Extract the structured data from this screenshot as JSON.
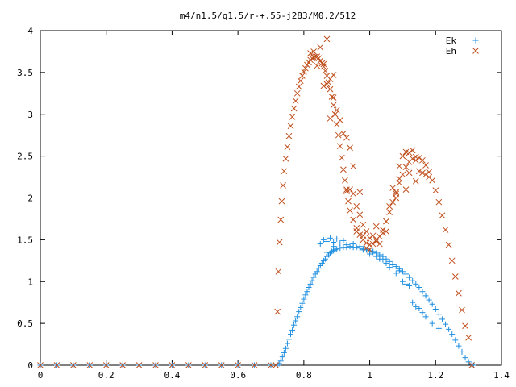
{
  "chart_data": {
    "type": "scatter",
    "title": "m4/n1.5/q1.5/r-+.55-j283/M0.2/512",
    "xlabel": "",
    "ylabel": "",
    "xlim": [
      0,
      1.4
    ],
    "ylim": [
      0,
      4
    ],
    "x_ticks": [
      "0",
      "0.2",
      "0.4",
      "0.6",
      "0.8",
      "1",
      "1.2",
      "1.4"
    ],
    "y_ticks": [
      "0",
      "0.5",
      "1",
      "1.5",
      "2",
      "2.5",
      "3",
      "3.5",
      "4"
    ],
    "legend_position": "top-right",
    "grid": false,
    "series": [
      {
        "name": "Ek",
        "marker": "plus",
        "color": "#1f8fe0",
        "points": [
          [
            0.0,
            0
          ],
          [
            0.05,
            0
          ],
          [
            0.1,
            0
          ],
          [
            0.15,
            0
          ],
          [
            0.2,
            0
          ],
          [
            0.25,
            0
          ],
          [
            0.3,
            0
          ],
          [
            0.35,
            0
          ],
          [
            0.4,
            0
          ],
          [
            0.45,
            0
          ],
          [
            0.5,
            0
          ],
          [
            0.55,
            0
          ],
          [
            0.6,
            0
          ],
          [
            0.65,
            0
          ],
          [
            0.7,
            0
          ],
          [
            0.72,
            0
          ],
          [
            0.725,
            0.02
          ],
          [
            0.73,
            0.05
          ],
          [
            0.735,
            0.1
          ],
          [
            0.74,
            0.15
          ],
          [
            0.745,
            0.2
          ],
          [
            0.75,
            0.26
          ],
          [
            0.755,
            0.31
          ],
          [
            0.76,
            0.37
          ],
          [
            0.765,
            0.42
          ],
          [
            0.77,
            0.48
          ],
          [
            0.775,
            0.53
          ],
          [
            0.78,
            0.58
          ],
          [
            0.785,
            0.64
          ],
          [
            0.79,
            0.69
          ],
          [
            0.795,
            0.74
          ],
          [
            0.8,
            0.79
          ],
          [
            0.805,
            0.84
          ],
          [
            0.81,
            0.88
          ],
          [
            0.815,
            0.93
          ],
          [
            0.82,
            0.97
          ],
          [
            0.825,
            1.01
          ],
          [
            0.83,
            1.05
          ],
          [
            0.835,
            1.09
          ],
          [
            0.84,
            1.12
          ],
          [
            0.845,
            1.16
          ],
          [
            0.85,
            1.19
          ],
          [
            0.855,
            1.22
          ],
          [
            0.86,
            1.25
          ],
          [
            0.865,
            1.27
          ],
          [
            0.87,
            1.3
          ],
          [
            0.875,
            1.32
          ],
          [
            0.88,
            1.34
          ],
          [
            0.885,
            1.36
          ],
          [
            0.89,
            1.37
          ],
          [
            0.895,
            1.38
          ],
          [
            0.9,
            1.39
          ],
          [
            0.91,
            1.4
          ],
          [
            0.92,
            1.41
          ],
          [
            0.93,
            1.41
          ],
          [
            0.94,
            1.42
          ],
          [
            0.95,
            1.41
          ],
          [
            0.96,
            1.41
          ],
          [
            0.97,
            1.4
          ],
          [
            0.98,
            1.39
          ],
          [
            0.99,
            1.38
          ],
          [
            1.0,
            1.37
          ],
          [
            1.01,
            1.36
          ],
          [
            1.02,
            1.34
          ],
          [
            1.03,
            1.32
          ],
          [
            1.04,
            1.3
          ],
          [
            1.05,
            1.27
          ],
          [
            1.06,
            1.24
          ],
          [
            1.07,
            1.21
          ],
          [
            1.08,
            1.18
          ],
          [
            1.09,
            1.15
          ],
          [
            1.1,
            1.12
          ],
          [
            1.11,
            1.09
          ],
          [
            1.12,
            1.05
          ],
          [
            1.13,
            1.01
          ],
          [
            1.14,
            0.97
          ],
          [
            1.15,
            0.93
          ],
          [
            1.16,
            0.88
          ],
          [
            1.17,
            0.83
          ],
          [
            1.18,
            0.78
          ],
          [
            1.19,
            0.73
          ],
          [
            1.2,
            0.67
          ],
          [
            1.21,
            0.61
          ],
          [
            1.22,
            0.55
          ],
          [
            1.23,
            0.49
          ],
          [
            1.24,
            0.43
          ],
          [
            1.25,
            0.37
          ],
          [
            1.26,
            0.3
          ],
          [
            1.27,
            0.23
          ],
          [
            1.28,
            0.16
          ],
          [
            1.29,
            0.09
          ],
          [
            1.3,
            0.04
          ],
          [
            1.31,
            0.01
          ],
          [
            1.315,
            0.0
          ],
          [
            0.85,
            1.45
          ],
          [
            0.86,
            1.5
          ],
          [
            0.87,
            1.48
          ],
          [
            0.88,
            1.52
          ],
          [
            0.89,
            1.47
          ],
          [
            0.9,
            1.51
          ],
          [
            0.91,
            1.46
          ],
          [
            0.92,
            1.49
          ],
          [
            0.95,
            1.45
          ],
          [
            0.98,
            1.38
          ],
          [
            1.0,
            1.33
          ],
          [
            1.02,
            1.3
          ],
          [
            1.03,
            1.27
          ],
          [
            1.05,
            1.22
          ],
          [
            1.06,
            1.17
          ],
          [
            1.08,
            1.1
          ],
          [
            1.1,
            1.0
          ],
          [
            1.12,
            0.95
          ],
          [
            1.13,
            0.75
          ],
          [
            1.14,
            0.7
          ],
          [
            1.15,
            0.68
          ],
          [
            1.16,
            0.63
          ],
          [
            1.04,
            1.26
          ],
          [
            1.07,
            1.2
          ],
          [
            1.09,
            1.13
          ],
          [
            0.87,
            1.35
          ],
          [
            0.89,
            1.42
          ],
          [
            0.93,
            1.44
          ],
          [
            0.97,
            1.42
          ],
          [
            1.01,
            1.35
          ],
          [
            1.11,
            0.97
          ],
          [
            1.17,
            0.58
          ],
          [
            1.19,
            0.5
          ],
          [
            1.21,
            0.44
          ]
        ]
      },
      {
        "name": "Eh",
        "marker": "cross",
        "color": "#c0501e",
        "points": [
          [
            0.0,
            0
          ],
          [
            0.05,
            0
          ],
          [
            0.1,
            0
          ],
          [
            0.15,
            0
          ],
          [
            0.2,
            0
          ],
          [
            0.25,
            0
          ],
          [
            0.3,
            0
          ],
          [
            0.35,
            0
          ],
          [
            0.4,
            0
          ],
          [
            0.45,
            0
          ],
          [
            0.5,
            0
          ],
          [
            0.55,
            0
          ],
          [
            0.6,
            0
          ],
          [
            0.65,
            0
          ],
          [
            0.7,
            0
          ],
          [
            0.715,
            0
          ],
          [
            0.72,
            0.64
          ],
          [
            0.723,
            1.12
          ],
          [
            0.726,
            1.47
          ],
          [
            0.73,
            1.74
          ],
          [
            0.733,
            1.96
          ],
          [
            0.737,
            2.15
          ],
          [
            0.74,
            2.32
          ],
          [
            0.745,
            2.47
          ],
          [
            0.75,
            2.61
          ],
          [
            0.755,
            2.74
          ],
          [
            0.76,
            2.86
          ],
          [
            0.765,
            2.97
          ],
          [
            0.77,
            3.07
          ],
          [
            0.775,
            3.16
          ],
          [
            0.78,
            3.25
          ],
          [
            0.785,
            3.33
          ],
          [
            0.79,
            3.4
          ],
          [
            0.795,
            3.46
          ],
          [
            0.8,
            3.51
          ],
          [
            0.805,
            3.55
          ],
          [
            0.81,
            3.59
          ],
          [
            0.815,
            3.62
          ],
          [
            0.82,
            3.65
          ],
          [
            0.825,
            3.67
          ],
          [
            0.83,
            3.68
          ],
          [
            0.835,
            3.69
          ],
          [
            0.84,
            3.69
          ],
          [
            0.845,
            3.67
          ],
          [
            0.85,
            3.64
          ],
          [
            0.855,
            3.61
          ],
          [
            0.86,
            3.57
          ],
          [
            0.865,
            3.52
          ],
          [
            0.87,
            3.46
          ],
          [
            0.875,
            3.38
          ],
          [
            0.88,
            3.3
          ],
          [
            0.885,
            3.21
          ],
          [
            0.89,
            3.11
          ],
          [
            0.895,
            3.0
          ],
          [
            0.9,
            2.88
          ],
          [
            0.905,
            2.75
          ],
          [
            0.91,
            2.62
          ],
          [
            0.915,
            2.48
          ],
          [
            0.92,
            2.34
          ],
          [
            0.925,
            2.21
          ],
          [
            0.93,
            2.08
          ],
          [
            0.935,
            1.96
          ],
          [
            0.94,
            1.85
          ],
          [
            0.95,
            1.74
          ],
          [
            0.96,
            1.64
          ],
          [
            0.97,
            1.56
          ],
          [
            0.98,
            1.5
          ],
          [
            0.99,
            1.46
          ],
          [
            1.0,
            1.44
          ],
          [
            1.01,
            1.45
          ],
          [
            1.02,
            1.48
          ],
          [
            1.03,
            1.54
          ],
          [
            1.04,
            1.62
          ],
          [
            1.05,
            1.72
          ],
          [
            1.06,
            1.83
          ],
          [
            1.07,
            1.95
          ],
          [
            1.08,
            2.07
          ],
          [
            1.09,
            2.18
          ],
          [
            1.1,
            2.28
          ],
          [
            1.11,
            2.37
          ],
          [
            1.12,
            2.43
          ],
          [
            1.13,
            2.47
          ],
          [
            1.14,
            2.49
          ],
          [
            1.15,
            2.48
          ],
          [
            1.16,
            2.45
          ],
          [
            1.17,
            2.39
          ],
          [
            1.18,
            2.31
          ],
          [
            1.19,
            2.21
          ],
          [
            1.2,
            2.09
          ],
          [
            1.21,
            1.95
          ],
          [
            1.22,
            1.79
          ],
          [
            1.23,
            1.62
          ],
          [
            1.24,
            1.44
          ],
          [
            1.25,
            1.25
          ],
          [
            1.26,
            1.06
          ],
          [
            1.27,
            0.86
          ],
          [
            1.28,
            0.66
          ],
          [
            1.29,
            0.47
          ],
          [
            1.3,
            0.33
          ],
          [
            1.31,
            0.0
          ],
          [
            0.85,
            3.8
          ],
          [
            0.87,
            3.9
          ],
          [
            0.86,
            3.6
          ],
          [
            0.84,
            3.58
          ],
          [
            0.83,
            3.75
          ],
          [
            0.82,
            3.73
          ],
          [
            0.88,
            3.42
          ],
          [
            0.89,
            3.47
          ],
          [
            0.87,
            3.36
          ],
          [
            0.88,
            2.95
          ],
          [
            0.9,
            3.05
          ],
          [
            0.91,
            2.93
          ],
          [
            0.89,
            3.2
          ],
          [
            0.86,
            3.34
          ],
          [
            0.92,
            2.77
          ],
          [
            0.93,
            2.72
          ],
          [
            0.94,
            2.6
          ],
          [
            0.95,
            2.38
          ],
          [
            0.95,
            2.05
          ],
          [
            0.96,
            1.9
          ],
          [
            0.97,
            1.8
          ],
          [
            0.98,
            1.68
          ],
          [
            0.99,
            1.6
          ],
          [
            1.0,
            1.52
          ],
          [
            1.01,
            1.55
          ],
          [
            1.02,
            1.66
          ],
          [
            1.03,
            1.45
          ],
          [
            1.04,
            1.58
          ],
          [
            1.05,
            1.6
          ],
          [
            1.06,
            1.9
          ],
          [
            1.07,
            2.12
          ],
          [
            1.08,
            2.05
          ],
          [
            1.09,
            2.23
          ],
          [
            1.1,
            2.5
          ],
          [
            1.11,
            2.55
          ],
          [
            1.12,
            2.54
          ],
          [
            1.13,
            2.57
          ],
          [
            1.14,
            2.45
          ],
          [
            1.15,
            2.32
          ],
          [
            1.16,
            2.3
          ],
          [
            1.17,
            2.28
          ],
          [
            1.18,
            2.25
          ],
          [
            1.11,
            2.1
          ],
          [
            1.12,
            2.3
          ],
          [
            1.14,
            2.2
          ],
          [
            1.09,
            2.38
          ],
          [
            1.08,
            2.0
          ],
          [
            1.02,
            1.5
          ],
          [
            0.98,
            1.55
          ],
          [
            0.96,
            1.6
          ],
          [
            0.94,
            2.1
          ],
          [
            0.93,
            2.1
          ],
          [
            0.99,
            1.4
          ],
          [
            1.0,
            1.38
          ],
          [
            1.05,
            1.72
          ],
          [
            0.97,
            2.07
          ]
        ]
      }
    ]
  }
}
